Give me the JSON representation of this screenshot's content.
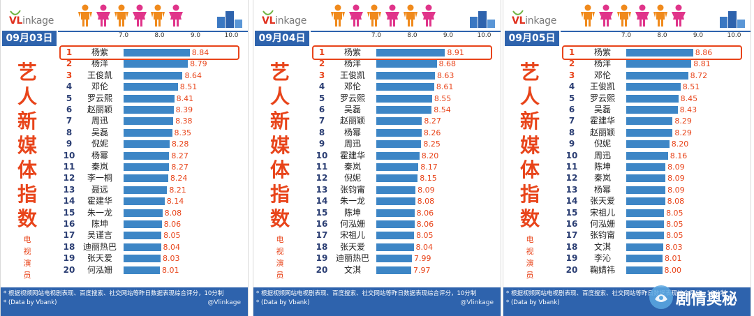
{
  "brand": "VLinkage",
  "side_title": [
    "艺",
    "人",
    "新",
    "媒",
    "体",
    "指",
    "数"
  ],
  "side_star": "*",
  "side_subtitle": [
    "电",
    "视",
    "演",
    "员"
  ],
  "footnote_1": "* 根据视频网站电视剧表现、百度搜索、社交网站等昨日数据表现综合评分，10分制",
  "footnote_2": "* (Data by Vbank)",
  "weibo_credit": "@Vlinkage",
  "watermark": "剧情奥秘",
  "colors": {
    "accent_blue": "#2e63ad",
    "bar_blue": "#3d86c6",
    "value_red": "#e8441a",
    "rank_navy": "#2b3e73"
  },
  "chart_data": [
    {
      "type": "bar",
      "date": "09月03日",
      "xticks": [
        "7.0",
        "8.0",
        "9.0",
        "10.0"
      ],
      "xlim": [
        7.0,
        10.0
      ],
      "ranks": [
        1,
        2,
        3,
        4,
        5,
        6,
        7,
        8,
        9,
        10,
        11,
        12,
        13,
        14,
        15,
        16,
        17,
        18,
        19,
        20
      ],
      "categories": [
        "杨紫",
        "杨洋",
        "王俊凯",
        "邓伦",
        "罗云熙",
        "赵丽颖",
        "周迅",
        "吴磊",
        "倪妮",
        "杨幂",
        "秦岚",
        "李一桐",
        "聂远",
        "霍建华",
        "朱一龙",
        "陈坤",
        "吴谨言",
        "迪丽热巴",
        "张天爱",
        "何泓姗"
      ],
      "values": [
        8.84,
        8.79,
        8.64,
        8.51,
        8.41,
        8.39,
        8.38,
        8.35,
        8.28,
        8.27,
        8.27,
        8.24,
        8.21,
        8.14,
        8.08,
        8.06,
        8.05,
        8.04,
        8.03,
        8.01
      ],
      "value_labels": [
        "8.84",
        "8.79",
        "8.64",
        "8.51",
        "8.41",
        "8.39",
        "8.38",
        "8.35",
        "8.28",
        "8.27",
        "8.27",
        "8.24",
        "8.21",
        "8.14",
        "8.08",
        "8.06",
        "8.05",
        "8.04",
        "8.03",
        "8.01"
      ],
      "highlight_rank": 1
    },
    {
      "type": "bar",
      "date": "09月04日",
      "xticks": [
        "7.0",
        "8.0",
        "9.0",
        "10.0"
      ],
      "xlim": [
        7.0,
        10.0
      ],
      "ranks": [
        1,
        2,
        3,
        4,
        5,
        6,
        7,
        8,
        9,
        10,
        11,
        12,
        13,
        14,
        15,
        16,
        17,
        18,
        19,
        20
      ],
      "categories": [
        "杨紫",
        "杨洋",
        "王俊凯",
        "邓伦",
        "罗云熙",
        "吴磊",
        "赵丽颖",
        "杨幂",
        "周迅",
        "霍建华",
        "秦岚",
        "倪妮",
        "张钧甯",
        "朱一龙",
        "陈坤",
        "何泓姗",
        "宋祖儿",
        "张天爱",
        "迪丽热巴",
        "文淇"
      ],
      "values": [
        8.91,
        8.68,
        8.63,
        8.61,
        8.55,
        8.54,
        8.27,
        8.26,
        8.25,
        8.2,
        8.17,
        8.15,
        8.09,
        8.08,
        8.06,
        8.06,
        8.05,
        8.04,
        7.99,
        7.97
      ],
      "value_labels": [
        "8.91",
        "8.68",
        "8.63",
        "8.61",
        "8.55",
        "8.54",
        "8.27",
        "8.26",
        "8.25",
        "8.20",
        "8.17",
        "8.15",
        "8.09",
        "8.08",
        "8.06",
        "8.06",
        "8.05",
        "8.04",
        "7.99",
        "7.97"
      ],
      "highlight_rank": 1
    },
    {
      "type": "bar",
      "date": "09月05日",
      "xticks": [
        "7.0",
        "8.0",
        "9.0",
        "10.0"
      ],
      "xlim": [
        7.0,
        10.0
      ],
      "ranks": [
        1,
        2,
        3,
        4,
        5,
        6,
        7,
        8,
        9,
        10,
        11,
        12,
        13,
        14,
        15,
        16,
        17,
        18,
        19,
        20
      ],
      "categories": [
        "杨紫",
        "杨洋",
        "邓伦",
        "王俊凯",
        "罗云熙",
        "吴磊",
        "霍建华",
        "赵丽颖",
        "倪妮",
        "周迅",
        "陈坤",
        "秦岚",
        "杨幂",
        "张天爱",
        "宋祖儿",
        "何泓姗",
        "张钧甯",
        "文淇",
        "李沁",
        "鞠婧祎"
      ],
      "values": [
        8.86,
        8.81,
        8.72,
        8.51,
        8.45,
        8.43,
        8.29,
        8.29,
        8.2,
        8.16,
        8.09,
        8.09,
        8.09,
        8.08,
        8.05,
        8.05,
        8.05,
        8.03,
        8.01,
        8.0
      ],
      "value_labels": [
        "8.86",
        "8.81",
        "8.72",
        "8.51",
        "8.45",
        "8.43",
        "8.29",
        "8.29",
        "8.20",
        "8.16",
        "8.09",
        "8.09",
        "8.09",
        "8.08",
        "8.05",
        "8.05",
        "8.05",
        "8.03",
        "8.01",
        "8.00"
      ],
      "highlight_rank": 1
    }
  ]
}
